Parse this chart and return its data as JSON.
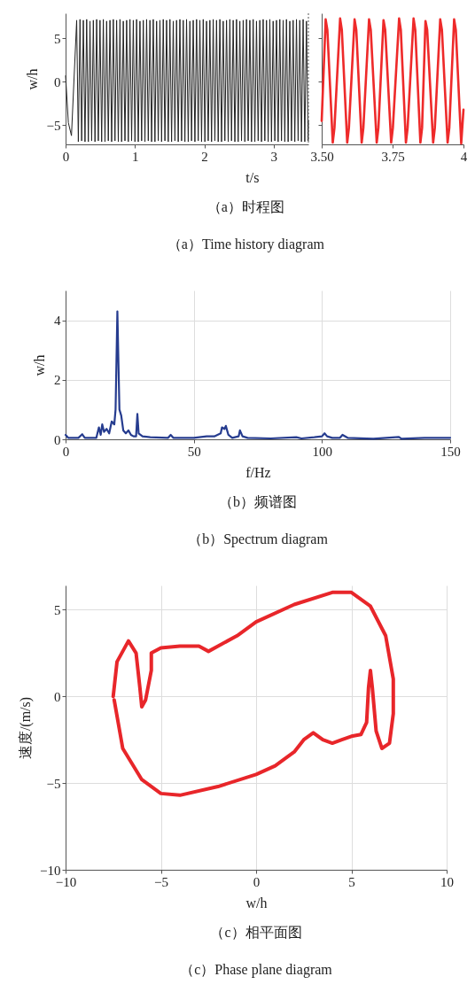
{
  "chart_data": [
    {
      "type": "line",
      "xlabel": "t/s",
      "ylabel": "w/h",
      "xlim": [
        0,
        3.5
      ],
      "ylim": [
        -7.2,
        7.9
      ],
      "xticks": [
        0,
        1,
        2,
        3
      ],
      "yticks": [
        -5,
        0,
        5
      ],
      "marker": "none",
      "line_style": "solid",
      "annotations": [
        "（a）时程图",
        "（a）Time history diagram"
      ],
      "ref_lines": [
        {
          "axis": "x",
          "value": 3.5,
          "label": null,
          "color": "#555555",
          "line_style": "dotted"
        }
      ],
      "series": [
        {
          "color": "#222222",
          "x": [
            0,
            0.04,
            0.085,
            0.16,
            0.184,
            0.208,
            0.232,
            0.256,
            0.28,
            0.304,
            0.328,
            0.352,
            0.376,
            0.4,
            0.424,
            0.448,
            0.472,
            0.496,
            0.52,
            0.544,
            0.568,
            0.592,
            0.616,
            0.64,
            0.664,
            0.688,
            0.712,
            0.736,
            0.76,
            0.784,
            0.808,
            0.832,
            0.856,
            0.88,
            0.904,
            0.928,
            0.952,
            0.976,
            1.0,
            1.024,
            1.048,
            1.072,
            1.096,
            1.12,
            1.144,
            1.168,
            1.192,
            1.216,
            1.24,
            1.264,
            1.288,
            1.312,
            1.336,
            1.36,
            1.384,
            1.408,
            1.432,
            1.456,
            1.48,
            1.504,
            1.528,
            1.552,
            1.576,
            1.6,
            1.624,
            1.648,
            1.672,
            1.696,
            1.72,
            1.744,
            1.768,
            1.792,
            1.816,
            1.84,
            1.864,
            1.888,
            1.912,
            1.936,
            1.96,
            1.984,
            2.008,
            2.032,
            2.056,
            2.08,
            2.104,
            2.128,
            2.152,
            2.176,
            2.2,
            2.224,
            2.248,
            2.272,
            2.296,
            2.32,
            2.344,
            2.368,
            2.392,
            2.416,
            2.44,
            2.464,
            2.488,
            2.512,
            2.536,
            2.56,
            2.584,
            2.608,
            2.632,
            2.656,
            2.68,
            2.704,
            2.728,
            2.752,
            2.776,
            2.8,
            2.824,
            2.848,
            2.872,
            2.896,
            2.92,
            2.944,
            2.968,
            2.992,
            3.016,
            3.04,
            3.064,
            3.088,
            3.112,
            3.136,
            3.16,
            3.184,
            3.208,
            3.232,
            3.256,
            3.28,
            3.304,
            3.328,
            3.352,
            3.376,
            3.4,
            3.424,
            3.448,
            3.472,
            3.496,
            3.5
          ],
          "values": [
            0.7,
            -4.7,
            -6.2,
            7.1,
            -6.9,
            7.2,
            -6.8,
            7.1,
            -6.9,
            7.2,
            -6.9,
            7.0,
            -6.8,
            7.1,
            -6.9,
            7.2,
            -6.8,
            7.1,
            -6.9,
            7.2,
            -6.9,
            7.0,
            -6.8,
            7.1,
            -6.9,
            7.2,
            -6.8,
            7.1,
            -6.9,
            7.2,
            -6.9,
            7.0,
            -6.8,
            7.1,
            -6.9,
            7.2,
            -6.8,
            7.1,
            -6.9,
            7.2,
            -6.9,
            7.0,
            -6.8,
            7.1,
            -6.9,
            7.2,
            -6.8,
            7.1,
            -6.9,
            7.2,
            -6.9,
            7.0,
            -6.8,
            7.1,
            -6.9,
            7.2,
            -6.8,
            7.1,
            -6.9,
            7.2,
            -6.9,
            7.0,
            -6.8,
            7.1,
            -6.9,
            7.2,
            -6.8,
            7.1,
            -6.9,
            7.2,
            -6.9,
            7.0,
            -6.8,
            7.1,
            -6.9,
            7.2,
            -6.8,
            7.1,
            -6.9,
            7.2,
            -6.9,
            7.0,
            -6.8,
            7.1,
            -6.9,
            7.2,
            -6.8,
            7.1,
            -6.9,
            7.2,
            -6.9,
            7.0,
            -6.8,
            7.1,
            -6.9,
            7.2,
            -6.8,
            7.1,
            -6.9,
            7.2,
            -6.9,
            7.0,
            -6.8,
            7.1,
            -6.9,
            7.2,
            -6.8,
            7.1,
            -6.9,
            7.2,
            -6.9,
            7.0,
            -6.8,
            7.1,
            -6.9,
            7.2,
            -6.8,
            7.1,
            -6.9,
            7.2,
            -6.9,
            7.0,
            -6.8,
            7.1,
            -6.9,
            7.2,
            -6.8,
            7.1,
            -6.9,
            7.2,
            -6.9,
            7.0,
            -6.8,
            7.1,
            -6.9,
            7.2,
            -6.8,
            7.1,
            -6.9,
            7.2,
            -6.9,
            7.0,
            -6.8,
            -4.5
          ]
        }
      ]
    },
    {
      "type": "line",
      "xlim": [
        3.5,
        4
      ],
      "ylim": [
        -7.2,
        7.9
      ],
      "yticks": [
        -5,
        0,
        5
      ],
      "xticks": [
        {
          "value": 3.5,
          "label": "3.50"
        },
        3.75,
        4
      ],
      "tick_labels": "x",
      "marker": "none",
      "line_style": "solid",
      "series": [
        {
          "color": "#ee2a2a",
          "x": [
            3.5,
            3.514,
            3.52,
            3.539,
            3.545,
            3.565,
            3.571,
            3.59,
            3.596,
            3.616,
            3.622,
            3.641,
            3.647,
            3.667,
            3.673,
            3.694,
            3.7,
            3.718,
            3.724,
            3.745,
            3.751,
            3.773,
            3.779,
            3.797,
            3.803,
            3.824,
            3.83,
            3.848,
            3.854,
            3.866,
            3.872,
            3.893,
            3.899,
            3.918,
            3.924,
            3.944,
            3.95,
            3.967,
            3.973,
            3.992,
            4.0
          ],
          "values": [
            -4.5,
            7.2,
            6.0,
            -7.0,
            -5.3,
            7.3,
            6.0,
            -7.0,
            -5.3,
            7.2,
            6.0,
            -7.0,
            -5.3,
            7.2,
            6.0,
            -7.0,
            -5.3,
            7.1,
            6.0,
            -7.0,
            -5.3,
            7.3,
            6.0,
            -7.0,
            -5.3,
            7.3,
            6.0,
            -7.0,
            -5.3,
            7.0,
            6.0,
            -7.0,
            -5.3,
            7.2,
            6.0,
            -7.0,
            -5.3,
            7.2,
            6.0,
            -7.1,
            -3.2
          ]
        }
      ]
    },
    {
      "type": "line",
      "xlabel": "f/Hz",
      "ylabel": "w/h",
      "xlim": [
        0,
        150
      ],
      "ylim": [
        0,
        5
      ],
      "xticks": [
        0,
        50,
        100,
        150
      ],
      "yticks": [
        0,
        2,
        4
      ],
      "grid": true,
      "marker": "none",
      "line_style": "solid",
      "annotations": [
        "（b）频谱图",
        "（b）Spectrum diagram"
      ],
      "series": [
        {
          "color": "#263c8f",
          "x": [
            0,
            1,
            5,
            6.5,
            7.5,
            12,
            13,
            13.7,
            14.3,
            15,
            16,
            17,
            18,
            19,
            19.5,
            20.2,
            21,
            21.7,
            22.5,
            23.5,
            24.5,
            25.5,
            26.5,
            27.5,
            28,
            28.5,
            30,
            33,
            40,
            41,
            42,
            50,
            55,
            58,
            60.5,
            61,
            62,
            62.5,
            63.5,
            65,
            67.5,
            68,
            69,
            71,
            80,
            90,
            92,
            97,
            100,
            101,
            102,
            104,
            107,
            108,
            110,
            120,
            130,
            131,
            140,
            150
          ],
          "values": [
            0.15,
            0.05,
            0.05,
            0.17,
            0.05,
            0.05,
            0.4,
            0.15,
            0.5,
            0.25,
            0.35,
            0.2,
            0.6,
            0.5,
            1.0,
            4.3,
            1.0,
            0.8,
            0.3,
            0.2,
            0.3,
            0.15,
            0.1,
            0.1,
            0.85,
            0.2,
            0.1,
            0.07,
            0.05,
            0.15,
            0.05,
            0.05,
            0.1,
            0.1,
            0.2,
            0.4,
            0.35,
            0.45,
            0.15,
            0.05,
            0.1,
            0.3,
            0.1,
            0.05,
            0.03,
            0.07,
            0.03,
            0.07,
            0.1,
            0.2,
            0.1,
            0.05,
            0.05,
            0.15,
            0.05,
            0.02,
            0.08,
            0.02,
            0.05,
            0.05
          ]
        }
      ]
    },
    {
      "type": "line",
      "xlabel": "w/h",
      "ylabel": "速度/(m/s)",
      "xlim": [
        -10,
        10
      ],
      "ylim": [
        -10,
        6.4
      ],
      "xticks": [
        -10,
        -5,
        0,
        5,
        10
      ],
      "yticks": [
        -10,
        -5,
        0,
        5
      ],
      "grid": true,
      "marker": "none",
      "line_style": "solid",
      "annotations": [
        "（c）相平面图",
        "（c）Phase plane diagram"
      ],
      "series": [
        {
          "color": "#e8262a",
          "x": [
            -7.5,
            -7.3,
            -6.7,
            -6.3,
            -6.1,
            -6.0,
            -5.8,
            -5.5,
            -5.5,
            -5,
            -4,
            -3,
            -2.5,
            -2,
            -1,
            0,
            2,
            4,
            5,
            6,
            6.8,
            7.2,
            7.2,
            7,
            6.6,
            6.3,
            6.1,
            6,
            5.9,
            5.8,
            5.5,
            5,
            4.5,
            4,
            3.5,
            3,
            2.5,
            2,
            1,
            0,
            -2,
            -4,
            -5,
            -6,
            -7,
            -7.45
          ],
          "values": [
            0,
            2,
            3.2,
            2.5,
            0.5,
            -0.6,
            -0.2,
            1.5,
            2.5,
            2.8,
            2.9,
            2.9,
            2.6,
            2.9,
            3.5,
            4.3,
            5.3,
            6.0,
            6.0,
            5.2,
            3.5,
            1,
            -1,
            -2.7,
            -3,
            -2,
            0.5,
            1.5,
            0.5,
            -1.5,
            -2.2,
            -2.3,
            -2.5,
            -2.7,
            -2.5,
            -2.1,
            -2.5,
            -3.2,
            -4,
            -4.5,
            -5.2,
            -5.7,
            -5.6,
            -4.8,
            -3,
            -0.2
          ]
        }
      ]
    }
  ]
}
